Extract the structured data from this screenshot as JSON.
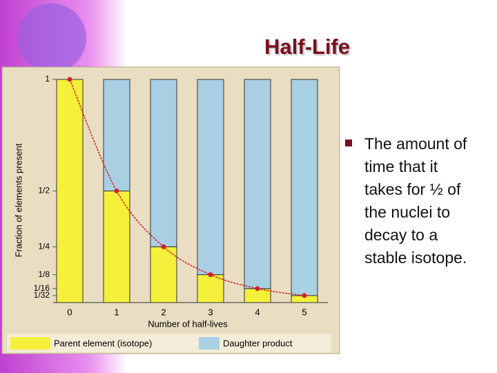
{
  "slide": {
    "title": "Half-Life",
    "bullet_lines": [
      "The amount of",
      "time that it",
      "takes for ½ of",
      "the nuclei to",
      "decay to a",
      "stable isotope."
    ]
  },
  "chart_data": {
    "type": "stacked-bar",
    "x_label": "Number of half-lives",
    "y_label": "Fraction of elements present",
    "categories": [
      "0",
      "1",
      "2",
      "3",
      "4",
      "5"
    ],
    "series": [
      {
        "name": "Parent element (isotope)",
        "color": "#f5f03a",
        "values": [
          1,
          0.5,
          0.25,
          0.125,
          0.0625,
          0.03125
        ]
      },
      {
        "name": "Daughter product",
        "color": "#a9cfe3",
        "values": [
          0,
          0.5,
          0.75,
          0.875,
          0.9375,
          0.96875
        ]
      }
    ],
    "curve_color": "#d42020",
    "ylim": [
      0,
      1
    ],
    "yticks": [
      1,
      {
        "value": 0.5,
        "label": "1/2"
      },
      {
        "value": 0.25,
        "label": "1/4"
      },
      {
        "value": 0.125,
        "label": "1/8"
      },
      {
        "value": 0.0625,
        "label": "1/16"
      },
      {
        "value": 0.03125,
        "label": "1/32"
      }
    ]
  }
}
